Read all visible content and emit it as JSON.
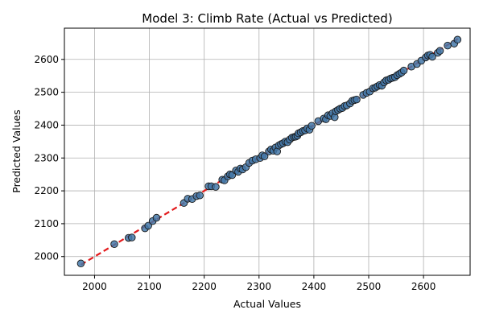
{
  "chart_data": {
    "type": "scatter",
    "title": "Model 3: Climb Rate (Actual vs Predicted)",
    "xlabel": "Actual Values",
    "ylabel": "Predicted Values",
    "xlim": [
      1945,
      2685
    ],
    "ylim": [
      1943,
      2695
    ],
    "x_ticks": [
      2000,
      2100,
      2200,
      2300,
      2400,
      2500,
      2600
    ],
    "y_ticks": [
      2000,
      2100,
      2200,
      2300,
      2400,
      2500,
      2600
    ],
    "grid": true,
    "legend": "none",
    "point_color": "#4478a8",
    "line_color": "#e31a1c",
    "reference_line": {
      "style": "dashed",
      "from": [
        1975,
        1975
      ],
      "to": [
        2665,
        2665
      ]
    },
    "points": [
      {
        "x": 1975,
        "y": 1979
      },
      {
        "x": 2036,
        "y": 2038
      },
      {
        "x": 2062,
        "y": 2057
      },
      {
        "x": 2068,
        "y": 2058
      },
      {
        "x": 2092,
        "y": 2086
      },
      {
        "x": 2098,
        "y": 2094
      },
      {
        "x": 2106,
        "y": 2108
      },
      {
        "x": 2113,
        "y": 2118
      },
      {
        "x": 2163,
        "y": 2163
      },
      {
        "x": 2170,
        "y": 2176
      },
      {
        "x": 2178,
        "y": 2175
      },
      {
        "x": 2186,
        "y": 2184
      },
      {
        "x": 2192,
        "y": 2186
      },
      {
        "x": 2208,
        "y": 2214
      },
      {
        "x": 2213,
        "y": 2214
      },
      {
        "x": 2221,
        "y": 2212
      },
      {
        "x": 2233,
        "y": 2234
      },
      {
        "x": 2237,
        "y": 2232
      },
      {
        "x": 2243,
        "y": 2244
      },
      {
        "x": 2247,
        "y": 2250
      },
      {
        "x": 2251,
        "y": 2248
      },
      {
        "x": 2258,
        "y": 2262
      },
      {
        "x": 2262,
        "y": 2258
      },
      {
        "x": 2266,
        "y": 2268
      },
      {
        "x": 2270,
        "y": 2265
      },
      {
        "x": 2276,
        "y": 2272
      },
      {
        "x": 2282,
        "y": 2285
      },
      {
        "x": 2288,
        "y": 2292
      },
      {
        "x": 2294,
        "y": 2296
      },
      {
        "x": 2302,
        "y": 2300
      },
      {
        "x": 2306,
        "y": 2308
      },
      {
        "x": 2310,
        "y": 2305
      },
      {
        "x": 2318,
        "y": 2320
      },
      {
        "x": 2322,
        "y": 2326
      },
      {
        "x": 2326,
        "y": 2322
      },
      {
        "x": 2330,
        "y": 2332
      },
      {
        "x": 2333,
        "y": 2320
      },
      {
        "x": 2336,
        "y": 2338
      },
      {
        "x": 2340,
        "y": 2342
      },
      {
        "x": 2344,
        "y": 2345
      },
      {
        "x": 2348,
        "y": 2350
      },
      {
        "x": 2352,
        "y": 2348
      },
      {
        "x": 2356,
        "y": 2356
      },
      {
        "x": 2360,
        "y": 2362
      },
      {
        "x": 2364,
        "y": 2364
      },
      {
        "x": 2367,
        "y": 2365
      },
      {
        "x": 2370,
        "y": 2368
      },
      {
        "x": 2372,
        "y": 2375
      },
      {
        "x": 2376,
        "y": 2378
      },
      {
        "x": 2380,
        "y": 2382
      },
      {
        "x": 2384,
        "y": 2384
      },
      {
        "x": 2388,
        "y": 2390
      },
      {
        "x": 2392,
        "y": 2386
      },
      {
        "x": 2396,
        "y": 2398
      },
      {
        "x": 2408,
        "y": 2412
      },
      {
        "x": 2418,
        "y": 2420
      },
      {
        "x": 2422,
        "y": 2418
      },
      {
        "x": 2426,
        "y": 2430
      },
      {
        "x": 2430,
        "y": 2428
      },
      {
        "x": 2434,
        "y": 2436
      },
      {
        "x": 2438,
        "y": 2424
      },
      {
        "x": 2440,
        "y": 2442
      },
      {
        "x": 2444,
        "y": 2446
      },
      {
        "x": 2448,
        "y": 2450
      },
      {
        "x": 2452,
        "y": 2452
      },
      {
        "x": 2456,
        "y": 2458
      },
      {
        "x": 2460,
        "y": 2460
      },
      {
        "x": 2466,
        "y": 2466
      },
      {
        "x": 2470,
        "y": 2474
      },
      {
        "x": 2474,
        "y": 2476
      },
      {
        "x": 2478,
        "y": 2478
      },
      {
        "x": 2490,
        "y": 2492
      },
      {
        "x": 2496,
        "y": 2498
      },
      {
        "x": 2502,
        "y": 2502
      },
      {
        "x": 2508,
        "y": 2512
      },
      {
        "x": 2512,
        "y": 2514
      },
      {
        "x": 2516,
        "y": 2518
      },
      {
        "x": 2520,
        "y": 2522
      },
      {
        "x": 2524,
        "y": 2520
      },
      {
        "x": 2528,
        "y": 2530
      },
      {
        "x": 2532,
        "y": 2536
      },
      {
        "x": 2536,
        "y": 2538
      },
      {
        "x": 2540,
        "y": 2542
      },
      {
        "x": 2544,
        "y": 2544
      },
      {
        "x": 2548,
        "y": 2546
      },
      {
        "x": 2552,
        "y": 2552
      },
      {
        "x": 2556,
        "y": 2556
      },
      {
        "x": 2560,
        "y": 2560
      },
      {
        "x": 2564,
        "y": 2566
      },
      {
        "x": 2578,
        "y": 2578
      },
      {
        "x": 2588,
        "y": 2586
      },
      {
        "x": 2596,
        "y": 2596
      },
      {
        "x": 2604,
        "y": 2606
      },
      {
        "x": 2608,
        "y": 2612
      },
      {
        "x": 2612,
        "y": 2614
      },
      {
        "x": 2616,
        "y": 2608
      },
      {
        "x": 2626,
        "y": 2620
      },
      {
        "x": 2630,
        "y": 2626
      },
      {
        "x": 2644,
        "y": 2642
      },
      {
        "x": 2656,
        "y": 2648
      },
      {
        "x": 2662,
        "y": 2660
      }
    ]
  }
}
